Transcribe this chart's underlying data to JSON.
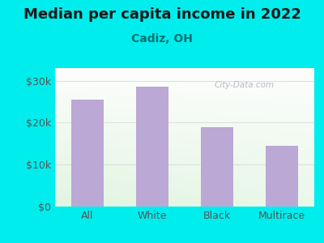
{
  "categories": [
    "All",
    "White",
    "Black",
    "Multirace"
  ],
  "values": [
    25500,
    28500,
    19000,
    14500
  ],
  "bar_color": "#bba8d4",
  "title": "Median per capita income in 2022",
  "subtitle": "Cadiz, OH",
  "title_fontsize": 13,
  "subtitle_fontsize": 10,
  "title_color": "#1a1a1a",
  "subtitle_color": "#007070",
  "ylabel_ticks": [
    0,
    10000,
    20000,
    30000
  ],
  "ytick_labels": [
    "$0",
    "$10k",
    "$20k",
    "$30k"
  ],
  "ylim": [
    0,
    33000
  ],
  "background_color": "#00eded",
  "grid_color": "#e0e0e0",
  "watermark": "City-Data.com",
  "tick_color": "#555555"
}
